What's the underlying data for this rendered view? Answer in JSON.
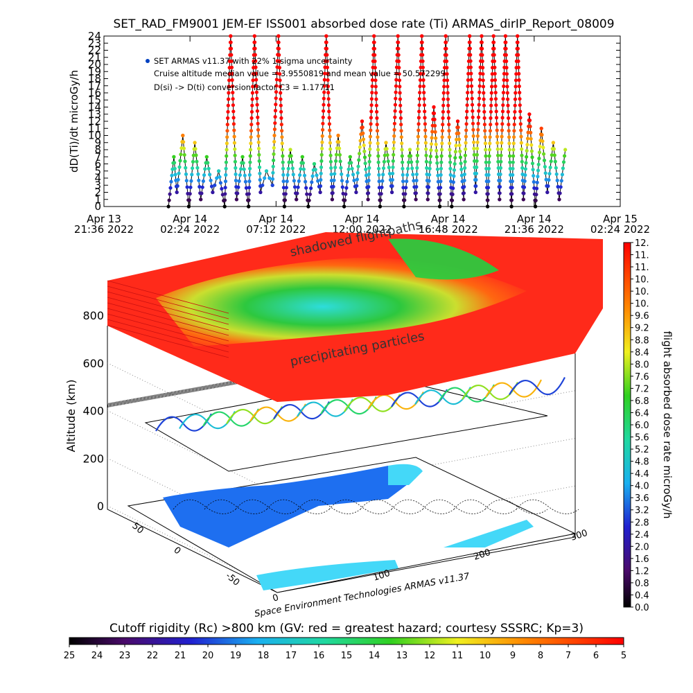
{
  "title": "SET_RAD_FM9001  JEM-EF ISS001 absorbed dose rate (Ti) ARMAS_dirIP_Report_08009",
  "colors": {
    "axis": "#000000",
    "legend_dot": "#0040c0",
    "plane_hot": "#ff2a1a",
    "plane_mid": "#22d040",
    "plane_cool": "#22e6e6",
    "land": "#1e6ff0",
    "water": "#44d8f8"
  },
  "chart_data": [
    {
      "type": "line",
      "name": "dose-rate-timeseries",
      "ylabel": "dD(Ti)/dt microGy/h",
      "ylim": [
        0,
        24
      ],
      "y_ticks": [
        "0",
        "1",
        "2",
        "3",
        "4",
        "5",
        "6",
        "7",
        "8",
        "9",
        "10",
        "11",
        "12",
        "13",
        "14",
        "15",
        "16",
        "17",
        "18",
        "19",
        "20",
        "21",
        "22",
        "23",
        "24"
      ],
      "x_ticks": [
        {
          "line1": "Apr 13",
          "line2": "21:36 2022"
        },
        {
          "line1": "Apr 14",
          "line2": "02:24 2022"
        },
        {
          "line1": "Apr 14",
          "line2": "07:12 2022"
        },
        {
          "line1": "Apr 14",
          "line2": "12:00 2022"
        },
        {
          "line1": "Apr 14",
          "line2": "16:48 2022"
        },
        {
          "line1": "Apr 14",
          "line2": "21:36 2022"
        },
        {
          "line1": "Apr 15",
          "line2": "02:24 2022"
        }
      ],
      "xlim": [
        "2022-04-13T21:36",
        "2022-04-15T02:24"
      ],
      "series": [
        {
          "name": "SET ARMAS v11.37 with 22% 1-sigma uncertainty",
          "x": [
            "2022-04-14T01:12",
            "2022-04-14T01:30",
            "2022-04-14T01:40",
            "2022-04-14T02:00",
            "2022-04-14T02:20",
            "2022-04-14T02:40",
            "2022-04-14T03:00",
            "2022-04-14T03:20",
            "2022-04-14T03:40",
            "2022-04-14T04:00",
            "2022-04-14T04:20",
            "2022-04-14T04:40",
            "2022-04-14T05:00",
            "2022-04-14T05:20",
            "2022-04-14T05:40",
            "2022-04-14T06:00",
            "2022-04-14T06:20",
            "2022-04-14T06:40",
            "2022-04-14T07:00",
            "2022-04-14T07:20",
            "2022-04-14T07:40",
            "2022-04-14T08:00",
            "2022-04-14T08:20",
            "2022-04-14T08:40",
            "2022-04-14T09:00",
            "2022-04-14T09:20",
            "2022-04-14T09:40",
            "2022-04-14T10:00",
            "2022-04-14T10:20",
            "2022-04-14T10:40",
            "2022-04-14T11:00",
            "2022-04-14T11:20",
            "2022-04-14T11:40",
            "2022-04-14T12:00",
            "2022-04-14T12:20",
            "2022-04-14T12:40",
            "2022-04-14T13:00",
            "2022-04-14T13:20",
            "2022-04-14T13:40",
            "2022-04-14T14:00",
            "2022-04-14T14:20",
            "2022-04-14T14:40",
            "2022-04-14T15:00",
            "2022-04-14T15:20",
            "2022-04-14T15:40",
            "2022-04-14T16:00",
            "2022-04-14T16:20",
            "2022-04-14T16:40",
            "2022-04-14T17:00",
            "2022-04-14T17:20",
            "2022-04-14T17:40",
            "2022-04-14T18:00",
            "2022-04-14T18:20",
            "2022-04-14T18:40",
            "2022-04-14T19:00",
            "2022-04-14T19:20",
            "2022-04-14T19:40",
            "2022-04-14T20:00",
            "2022-04-14T20:20",
            "2022-04-14T20:40",
            "2022-04-14T21:00",
            "2022-04-14T21:20",
            "2022-04-14T21:40",
            "2022-04-14T22:00",
            "2022-04-14T22:20",
            "2022-04-14T22:40",
            "2022-04-14T23:00",
            "2022-04-14T23:20"
          ],
          "values": [
            0,
            7,
            2,
            10,
            0,
            9,
            1,
            7,
            2,
            5,
            0,
            24,
            1,
            7,
            0,
            24,
            2,
            5,
            3,
            24,
            0,
            8,
            1,
            7,
            0,
            6,
            2,
            24,
            1,
            10,
            0,
            7,
            2,
            12,
            1,
            24,
            0,
            9,
            2,
            24,
            0,
            8,
            1,
            24,
            1,
            14,
            0,
            24,
            0,
            12,
            1,
            24,
            2,
            24,
            0,
            24,
            1,
            24,
            0,
            24,
            1,
            13,
            0,
            11,
            2,
            9,
            1,
            8
          ]
        }
      ],
      "annotations": [
        "Cruise altitude median value = 3.9550819 and mean value = 50.572299",
        "D(si) -> D(ti) conversion factor C3 = 1.17711"
      ]
    },
    {
      "type": "heatmap",
      "name": "3d-orbit-dose-map",
      "zlabel": "Altitude (km)",
      "z_ticks": [
        "0",
        "200",
        "400",
        "600",
        "800"
      ],
      "x_ticks": [
        "0",
        "100",
        "200",
        "300"
      ],
      "y_ticks": [
        "-50",
        "0",
        "50"
      ],
      "plane_labels": [
        "shadowed flightpaths",
        "precipitating particles"
      ],
      "credit": "Space Environment Technologies ARMAS v11.37"
    },
    {
      "type": "heatmap",
      "name": "dose-rate-colorbar",
      "label": "flight absorbed dose rate microGy/h",
      "ticks": [
        "0.0",
        "0.4",
        "0.8",
        "1.2",
        "1.6",
        "2.0",
        "2.4",
        "2.8",
        "3.2",
        "3.6",
        "4.0",
        "4.4",
        "4.8",
        "5.2",
        "5.6",
        "6.0",
        "6.4",
        "6.8",
        "7.2",
        "7.6",
        "8.0",
        "8.4",
        "8.8",
        "9.2",
        "9.6",
        "10.",
        "10.",
        "10.",
        "11.",
        "11.",
        "12."
      ],
      "range": [
        0,
        12
      ]
    },
    {
      "type": "heatmap",
      "name": "cutoff-rigidity-colorbar",
      "label": "Cutoff rigidity (Rc) >800 km (GV: red = greatest hazard; courtesy SSSRC; Kp=3)",
      "ticks": [
        "25",
        "24",
        "23",
        "22",
        "21",
        "20",
        "19",
        "18",
        "17",
        "16",
        "15",
        "14",
        "13",
        "12",
        "11",
        "10",
        "9",
        "8",
        "7",
        "6",
        "5"
      ],
      "range": [
        25,
        5
      ]
    }
  ]
}
